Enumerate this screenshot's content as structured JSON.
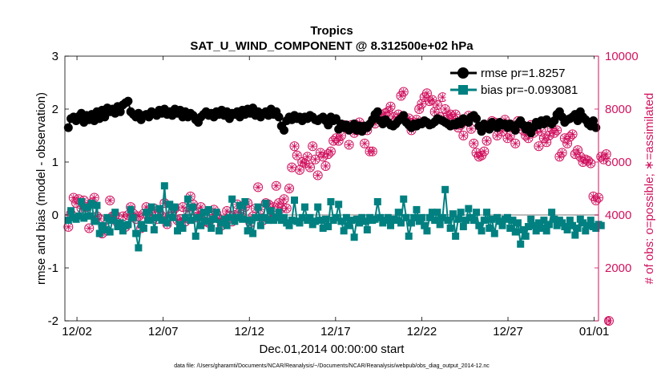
{
  "chart_data": {
    "type": "line",
    "title": "Tropics",
    "subtitle": "SAT_U_WIND_COMPONENT @ 8.312500e+02 hPa",
    "xlabel": "Dec.01,2014 00:00:00 start",
    "ylabel_left": "rmse and bias (model - observation)",
    "ylabel_right": "# of obs: o=possible; ∗=assimilated",
    "footnote": "data file: /Users/gharamti/Documents/NCAR/Reanalysis/~/Documents/NCAR/Reanalysis/webpub/obs_diag_output_2014-12.nc",
    "xlim": [
      0.3,
      31.25
    ],
    "ylim_left": [
      -2,
      3
    ],
    "ylim_right": [
      0,
      10000
    ],
    "x_ticks": [
      1,
      6,
      11,
      16,
      21,
      26,
      31
    ],
    "x_tick_labels": [
      "12/02",
      "12/07",
      "12/12",
      "12/17",
      "12/22",
      "12/27",
      "01/01"
    ],
    "y_left_ticks": [
      "-2",
      "-1",
      "0",
      "1",
      "2",
      "3"
    ],
    "y_right_ticks": [
      "0",
      "2000",
      "4000",
      "6000",
      "8000",
      "10000"
    ],
    "legend": [
      {
        "name": "rmse pr=1.8257",
        "color": "#000000"
      },
      {
        "name": "bias pr=-0.093081",
        "color": "#008080"
      }
    ],
    "colors": {
      "rmse": "#000000",
      "bias": "#008080",
      "obs": "#d0115e",
      "zero_line": "#bbbbbb"
    },
    "series": [
      {
        "name": "rmse",
        "axis": "left",
        "values": [
          1.65,
          1.82,
          1.85,
          1.78,
          1.86,
          1.92,
          1.75,
          1.88,
          1.8,
          1.9,
          1.78,
          1.95,
          1.82,
          1.98,
          1.85,
          2.02,
          1.95,
          2.0,
          1.92,
          2.05,
          1.95,
          2.08,
          2.12,
          2.15,
          1.95,
          1.9,
          1.85,
          1.92,
          1.8,
          1.88,
          1.9,
          1.85,
          1.95,
          1.92,
          1.88,
          1.98,
          1.92,
          2.0,
          1.9,
          1.95,
          1.88,
          2.0,
          1.92,
          1.98,
          1.85,
          1.95,
          1.85,
          1.92,
          1.88,
          1.8,
          1.75,
          1.85,
          1.9,
          1.95,
          1.88,
          1.92,
          1.85,
          1.95,
          1.9,
          1.98,
          1.88,
          1.95,
          1.82,
          1.92,
          1.9,
          1.95,
          1.85,
          1.98,
          1.9,
          2.0,
          1.92,
          2.02,
          1.88,
          1.95,
          1.85,
          1.92,
          1.95,
          1.88,
          2.0,
          1.9,
          1.95,
          1.85,
          1.68,
          1.6,
          1.78,
          1.85,
          1.8,
          1.88,
          1.82,
          1.85,
          1.78,
          1.85,
          1.82,
          1.88,
          1.85,
          1.8,
          1.78,
          1.82,
          1.85,
          1.78,
          1.7,
          1.85,
          1.78,
          1.82,
          1.62,
          1.72,
          1.65,
          1.7,
          1.6,
          1.65,
          1.72,
          1.6,
          1.68,
          1.58,
          1.68,
          1.65,
          1.72,
          1.8,
          1.9,
          1.95,
          1.78,
          1.72,
          1.8,
          1.75,
          1.7,
          1.68,
          1.72,
          1.78,
          1.82,
          1.88,
          1.75,
          1.7,
          1.65,
          1.72,
          1.68,
          1.74,
          1.72,
          1.78,
          1.75,
          1.7,
          1.72,
          1.76,
          1.82,
          1.8,
          1.78,
          1.75,
          1.72,
          1.68,
          1.72,
          1.7,
          1.76,
          1.72,
          1.82,
          1.8,
          1.75,
          1.85,
          1.88,
          1.82,
          1.68,
          1.58,
          1.72,
          1.68,
          1.62,
          1.75,
          1.7,
          1.65,
          1.75,
          1.7,
          1.72,
          1.65,
          1.72,
          1.68,
          1.6,
          1.72,
          1.78,
          1.7,
          1.62,
          1.68,
          1.55,
          1.65,
          1.75,
          1.7,
          1.78,
          1.72,
          1.8,
          1.75,
          1.72,
          1.78,
          1.9,
          1.95,
          1.85,
          1.75,
          1.8,
          1.82,
          1.85,
          1.9,
          1.78,
          1.95,
          1.85,
          1.8,
          1.72,
          1.68,
          1.78,
          1.65
        ]
      },
      {
        "name": "bias",
        "axis": "left",
        "values": [
          -0.1,
          0.08,
          -0.05,
          -0.08,
          -0.02,
          0.25,
          -0.06,
          0.15,
          -0.02,
          0.22,
          -0.12,
          0.18,
          -0.35,
          -0.2,
          -0.28,
          -0.05,
          -0.32,
          -0.1,
          0.05,
          -0.22,
          -0.15,
          -0.3,
          -0.2,
          -0.18,
          0.1,
          -0.05,
          -0.35,
          -0.62,
          -0.18,
          -0.25,
          0.05,
          -0.1,
          0.15,
          -0.28,
          -0.05,
          0.12,
          -0.1,
          0.55,
          -0.15,
          0.2,
          -0.05,
          0.15,
          -0.3,
          -0.18,
          -0.25,
          -0.05,
          0.3,
          -0.1,
          0.15,
          -0.4,
          -0.05,
          -0.2,
          0.05,
          -0.12,
          0.1,
          -0.25,
          -0.08,
          0.05,
          -0.3,
          -0.15,
          -0.08,
          -0.2,
          -0.05,
          0.3,
          -0.12,
          -0.05,
          0.18,
          -0.08,
          0.25,
          -0.3,
          -0.1,
          -0.35,
          -0.05,
          0.15,
          -0.2,
          -0.05,
          0.22,
          -0.1,
          0.08,
          -0.1,
          -0.05,
          0.05,
          -0.1,
          -0.05,
          -0.15,
          -0.2,
          -0.1,
          0.28,
          -0.12,
          -0.15,
          -0.05,
          0.15,
          -0.1,
          -0.05,
          -0.18,
          -0.12,
          0.15,
          -0.1,
          -0.25,
          -0.08,
          -0.22,
          0.25,
          -0.1,
          -0.05,
          0.2,
          -0.12,
          -0.3,
          -0.05,
          -0.2,
          -0.1,
          -0.42,
          -0.08,
          -0.15,
          -0.05,
          -0.12,
          -0.28,
          -0.05,
          -0.1,
          -0.08,
          0.25,
          -0.05,
          -0.15,
          -0.1,
          -0.05,
          -0.2,
          -0.08,
          -0.1,
          0.05,
          -0.15,
          0.3,
          -0.05,
          -0.4,
          -0.15,
          -0.05,
          0.1,
          -0.12,
          -0.05,
          -0.2,
          -0.3,
          -0.05,
          0.05,
          -0.1,
          0.05,
          -0.18,
          -0.05,
          0.48,
          -0.1,
          -0.25,
          0.02,
          -0.4,
          -0.08,
          0.05,
          -0.22,
          -0.1,
          0.12,
          -0.05,
          -0.1,
          0.05,
          -0.2,
          -0.3,
          -0.1,
          0.05,
          -0.25,
          -0.08,
          -0.35,
          -0.05,
          -0.12,
          -0.2,
          -0.08,
          -0.05,
          -0.25,
          -0.1,
          -0.32,
          -0.15,
          -0.55,
          -0.28,
          -0.4,
          -0.22,
          -0.08,
          -0.2,
          -0.3,
          -0.15,
          -0.25,
          -0.1,
          -0.3,
          -0.18,
          0.05,
          -0.08,
          -0.2,
          -0.1,
          -0.15,
          -0.22,
          -0.28,
          -0.1,
          -0.2,
          -0.38,
          -0.25,
          -0.08,
          -0.15,
          -0.3,
          -0.2,
          -0.1,
          -0.22,
          -0.25,
          -0.18,
          -0.2
        ]
      },
      {
        "name": "obs_possible",
        "axis": "right",
        "values": [
          3550,
          4050,
          4650,
          4450,
          4600,
          4250,
          4550,
          4300,
          3500,
          4450,
          4650,
          3950,
          3850,
          3300,
          3550,
          3400,
          4550,
          3950,
          4000,
          3700,
          3600,
          3950,
          3550,
          4000,
          4300,
          4050,
          3850,
          3950,
          3500,
          4050,
          4300,
          3850,
          4000,
          4250,
          3850,
          4100,
          3950,
          4450,
          3650,
          3950,
          4100,
          4250,
          3800,
          3850,
          4300,
          3750,
          4150,
          4700,
          4400,
          3900,
          4100,
          4300,
          4000,
          3750,
          3700,
          3850,
          4200,
          4050,
          3850,
          3600,
          3800,
          4150,
          3950,
          3750,
          4000,
          4400,
          4100,
          3900,
          4300,
          4450,
          3700,
          3950,
          4250,
          5050,
          4200,
          3800,
          4450,
          4400,
          3950,
          4300,
          5100,
          4450,
          4250,
          4600,
          4250,
          5000,
          5800,
          6600,
          6250,
          5700,
          6000,
          5950,
          6200,
          5800,
          6600,
          6100,
          5500,
          6350,
          6200,
          5850,
          6300,
          6400,
          6800,
          6900,
          6800,
          7000,
          7400,
          7300,
          6650,
          7400,
          7100,
          7200,
          7500,
          7350,
          6700,
          7200,
          6400,
          6400,
          7450,
          7700,
          7800,
          7650,
          7850,
          7900,
          8100,
          7700,
          7550,
          7800,
          8500,
          8650,
          7600,
          7650,
          7200,
          7500,
          7600,
          8000,
          8200,
          8450,
          8600,
          8300,
          8350,
          7900,
          8150,
          7700,
          8450,
          8000,
          7750,
          7800,
          7650,
          7800,
          7300,
          7400,
          7000,
          7550,
          7750,
          7250,
          6700,
          6350,
          6200,
          6250,
          6400,
          6800,
          7300,
          7550,
          7500,
          7000,
          7350,
          7150,
          7600,
          6900,
          7000,
          7300,
          6700,
          7550,
          7400,
          7200,
          7000,
          6900,
          7400,
          7100,
          7250,
          6600,
          7150,
          6900,
          6750,
          7000,
          7250,
          7100,
          7200,
          6200,
          6350,
          6900,
          6700,
          6950,
          7050,
          6300,
          6450,
          6200,
          6000,
          6100,
          6050,
          5950,
          4700,
          4550,
          4650,
          6200,
          6100,
          6300,
          0
        ]
      },
      {
        "name": "obs_assimilated",
        "axis": "right",
        "values": [
          3550,
          4050,
          4650,
          4450,
          4600,
          4250,
          4550,
          4300,
          3500,
          4450,
          4650,
          3950,
          3850,
          3300,
          3550,
          3400,
          4550,
          3950,
          4000,
          3700,
          3600,
          3950,
          3550,
          4000,
          4300,
          4050,
          3850,
          3950,
          3500,
          4050,
          4300,
          3850,
          4000,
          4250,
          3850,
          4100,
          3950,
          4450,
          3650,
          3950,
          4100,
          4250,
          3800,
          3850,
          4300,
          3750,
          4150,
          4700,
          4400,
          3900,
          4100,
          4300,
          4000,
          3750,
          3700,
          3850,
          4200,
          4050,
          3850,
          3600,
          3800,
          4150,
          3950,
          3750,
          4000,
          4400,
          4100,
          3900,
          4300,
          4450,
          3700,
          3950,
          4250,
          5050,
          4200,
          3800,
          4450,
          4400,
          3950,
          4300,
          5100,
          4450,
          4250,
          4600,
          4250,
          5000,
          5800,
          6600,
          6250,
          5700,
          6000,
          5950,
          6200,
          5800,
          6600,
          6100,
          5500,
          6350,
          6200,
          5850,
          6300,
          6400,
          6800,
          6900,
          6800,
          7000,
          7400,
          7300,
          6650,
          7400,
          7100,
          7200,
          7500,
          7350,
          6700,
          7200,
          6400,
          6400,
          7450,
          7700,
          7800,
          7650,
          7850,
          7900,
          8100,
          7700,
          7550,
          7800,
          8500,
          8650,
          7600,
          7650,
          7200,
          7500,
          7600,
          8000,
          8200,
          8450,
          8600,
          8300,
          8350,
          7900,
          8150,
          7700,
          8450,
          8000,
          7750,
          7800,
          7650,
          7800,
          7300,
          7400,
          7000,
          7550,
          7750,
          7250,
          6700,
          6350,
          6200,
          6250,
          6400,
          6800,
          7300,
          7550,
          7500,
          7000,
          7350,
          7150,
          7600,
          6900,
          7000,
          7300,
          6700,
          7550,
          7400,
          7200,
          7000,
          6900,
          7400,
          7100,
          7250,
          6600,
          7150,
          6900,
          6750,
          7000,
          7250,
          7100,
          7200,
          6200,
          6350,
          6900,
          6700,
          6950,
          7050,
          6300,
          6450,
          6200,
          6000,
          6100,
          6050,
          5950,
          4700,
          4550,
          4650,
          6200,
          6100,
          6300,
          0
        ]
      }
    ]
  }
}
